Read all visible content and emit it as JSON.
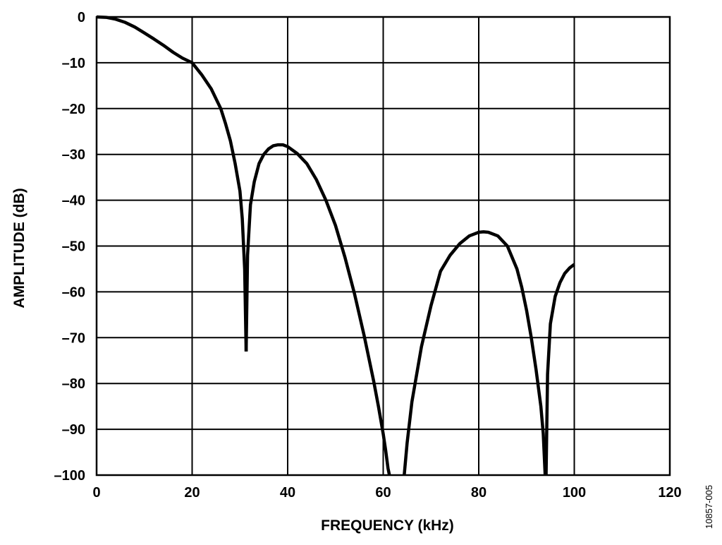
{
  "figure_id": "10857-005",
  "chart_data": {
    "type": "line",
    "title": "",
    "xlabel": "FREQUENCY (kHz)",
    "ylabel": "AMPLITUDE (dB)",
    "xlim": [
      0,
      120
    ],
    "ylim": [
      -100,
      0
    ],
    "grid": true,
    "x_ticks": [
      0,
      20,
      40,
      60,
      80,
      100,
      120
    ],
    "y_ticks": [
      0,
      -10,
      -20,
      -30,
      -40,
      -50,
      -60,
      -70,
      -80,
      -90,
      -100
    ],
    "x_tick_labels": [
      "0",
      "20",
      "40",
      "60",
      "80",
      "100",
      "120"
    ],
    "y_tick_labels": [
      "0",
      "–10",
      "–20",
      "–30",
      "–40",
      "–50",
      "–60",
      "–70",
      "–80",
      "–90",
      "–100"
    ],
    "line_color": "#000000",
    "series": [
      {
        "segments": [
          {
            "x": [
              0,
              2,
              4,
              6,
              8,
              10,
              12,
              14,
              16,
              18,
              20,
              22,
              24,
              26,
              27,
              28,
              29,
              30,
              30.5,
              31,
              31.3
            ],
            "y": [
              0,
              -0.1,
              -0.5,
              -1.2,
              -2.2,
              -3.5,
              -4.8,
              -6.2,
              -7.7,
              -9.0,
              -10.0,
              -12.6,
              -15.7,
              -20.0,
              -23.3,
              -27.0,
              -32.0,
              -38.0,
              -44.0,
              -55.0,
              -73.0
            ]
          },
          {
            "x": [
              31.3,
              31.6,
              32.2,
              33,
              34,
              35,
              36,
              37,
              38,
              39,
              40,
              42,
              44,
              46,
              48,
              50,
              52,
              54,
              56,
              58,
              59,
              60,
              60.5,
              61,
              61.3
            ],
            "y": [
              -73.0,
              -52.0,
              -41.0,
              -36.0,
              -32.0,
              -30.0,
              -28.8,
              -28.1,
              -27.9,
              -27.9,
              -28.3,
              -29.8,
              -32.0,
              -35.5,
              -40.0,
              -45.5,
              -52.5,
              -60.5,
              -69.5,
              -79.5,
              -85.0,
              -91.0,
              -94.5,
              -98.5,
              -100.0
            ]
          },
          {
            "x": [
              64.4,
              65,
              66,
              68,
              70,
              72,
              74,
              76,
              78,
              80,
              81,
              82,
              84,
              86,
              88,
              89,
              90,
              91,
              92,
              93,
              93.5,
              93.9
            ],
            "y": [
              -100.0,
              -93.0,
              -84.0,
              -72.0,
              -63.0,
              -55.5,
              -52.0,
              -49.5,
              -47.8,
              -47.0,
              -46.9,
              -47.0,
              -47.8,
              -50.0,
              -55.0,
              -59.0,
              -64.0,
              -70.0,
              -77.0,
              -85.0,
              -91.0,
              -100.0
            ]
          },
          {
            "x": [
              94.1,
              94.4,
              95,
              96,
              97,
              98,
              99,
              100
            ],
            "y": [
              -100.0,
              -78.0,
              -67.0,
              -61.0,
              -58.0,
              -56.0,
              -54.8,
              -54.0
            ]
          }
        ]
      }
    ]
  }
}
